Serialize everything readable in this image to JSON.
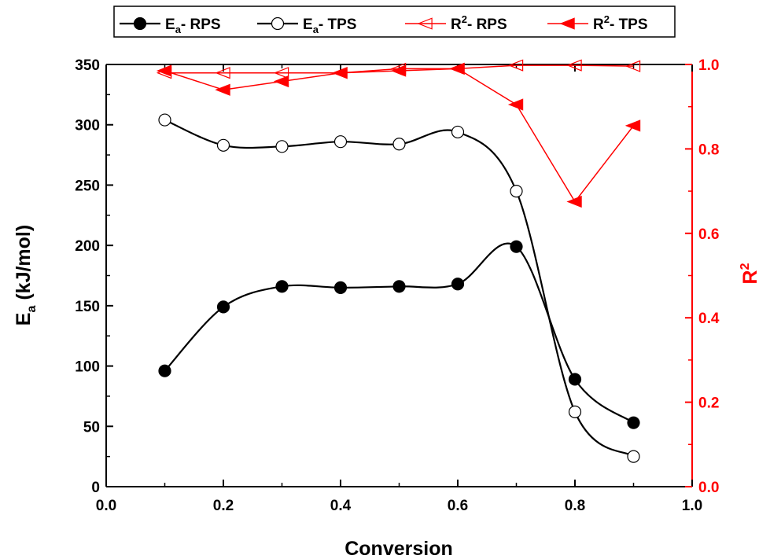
{
  "chart_data": {
    "type": "line",
    "xlabel": "Conversion",
    "ylabel_left": {
      "main": "E",
      "sub": "a",
      "rest": " (kJ/mol)"
    },
    "ylabel_right": {
      "main": "R",
      "sup": "2"
    },
    "xlim": [
      0.0,
      1.0
    ],
    "ylim_left": [
      0,
      350
    ],
    "ylim_right": [
      0.0,
      1.0
    ],
    "x_ticks": [
      "0.0",
      "0.2",
      "0.4",
      "0.6",
      "0.8",
      "1.0"
    ],
    "y_left_ticks": [
      "0",
      "50",
      "100",
      "150",
      "200",
      "250",
      "300",
      "350"
    ],
    "y_right_ticks": [
      "0.0",
      "0.2",
      "0.4",
      "0.6",
      "0.8",
      "1.0"
    ],
    "grid": false,
    "legend_position": "top",
    "colors": {
      "black": "#000000",
      "red": "#ff0000"
    },
    "series": [
      {
        "name": {
          "main": "E",
          "sub": "a",
          "rest": "- RPS"
        },
        "axis": "left",
        "marker": "filled-circle",
        "color": "#000000",
        "smooth": true,
        "x": [
          0.1,
          0.2,
          0.3,
          0.4,
          0.5,
          0.6,
          0.7,
          0.8,
          0.9
        ],
        "y": [
          96,
          149,
          166,
          165,
          166,
          168,
          199,
          89,
          53
        ]
      },
      {
        "name": {
          "main": "E",
          "sub": "a",
          "rest": "- TPS"
        },
        "axis": "left",
        "marker": "open-circle",
        "color": "#000000",
        "smooth": true,
        "x": [
          0.1,
          0.2,
          0.3,
          0.4,
          0.5,
          0.6,
          0.7,
          0.8,
          0.9
        ],
        "y": [
          304,
          283,
          282,
          286,
          284,
          294,
          245,
          62,
          25
        ]
      },
      {
        "name": {
          "main": "R",
          "sup": "2",
          "rest": "- RPS"
        },
        "axis": "right",
        "marker": "open-triangle-left",
        "color": "#ff0000",
        "smooth": false,
        "x": [
          0.1,
          0.2,
          0.3,
          0.4,
          0.5,
          0.6,
          0.7,
          0.8,
          0.9
        ],
        "y": [
          0.98,
          0.98,
          0.98,
          0.98,
          0.99,
          0.99,
          0.998,
          0.998,
          0.996
        ]
      },
      {
        "name": {
          "main": "R",
          "sup": "2",
          "rest": "- TPS"
        },
        "axis": "right",
        "marker": "filled-triangle-left",
        "color": "#ff0000",
        "smooth": false,
        "x": [
          0.1,
          0.2,
          0.3,
          0.4,
          0.5,
          0.6,
          0.7,
          0.8,
          0.9
        ],
        "y": [
          0.985,
          0.94,
          0.96,
          0.98,
          0.985,
          0.99,
          0.905,
          0.675,
          0.855
        ]
      }
    ]
  }
}
